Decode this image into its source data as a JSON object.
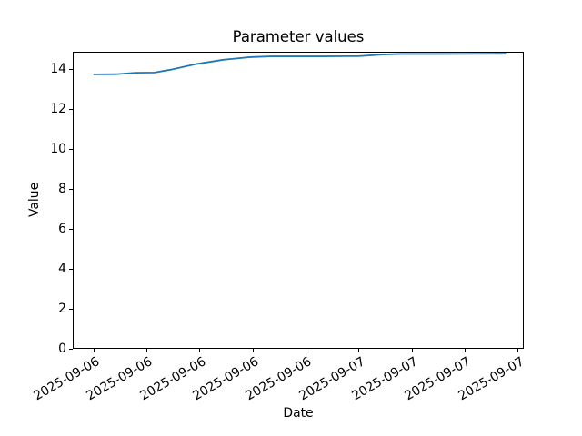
{
  "figure": {
    "background": "#ffffff",
    "text_color": "#000000"
  },
  "chart_data": {
    "type": "line",
    "title": "Parameter values",
    "xlabel": "Date",
    "ylabel": "Value",
    "grid": false,
    "legend": false,
    "xlim": [
      -0.39,
      8.115
    ],
    "ylim": [
      0,
      14.85
    ],
    "x_tick_positions": [
      0,
      1,
      2,
      3,
      4,
      5,
      6,
      7,
      8
    ],
    "x_tick_labels": [
      "2025-09-06",
      "2025-09-06",
      "2025-09-06",
      "2025-09-06",
      "2025-09-06",
      "2025-09-07",
      "2025-09-07",
      "2025-09-07",
      "2025-09-07"
    ],
    "x_tick_rotation_deg": 30,
    "y_ticks": [
      0,
      2,
      4,
      6,
      8,
      10,
      12,
      14
    ],
    "series": [
      {
        "name": "Parameter values",
        "color": "#1f77b4",
        "x": [
          0,
          0.45,
          0.8,
          1.15,
          1.45,
          1.95,
          2.45,
          2.95,
          3.35,
          4.3,
          5.0,
          5.45,
          5.8,
          6.5,
          7.78
        ],
        "y": [
          13.72,
          13.73,
          13.8,
          13.81,
          13.95,
          14.24,
          14.45,
          14.58,
          14.62,
          14.62,
          14.63,
          14.71,
          14.74,
          14.74,
          14.75
        ]
      }
    ]
  }
}
